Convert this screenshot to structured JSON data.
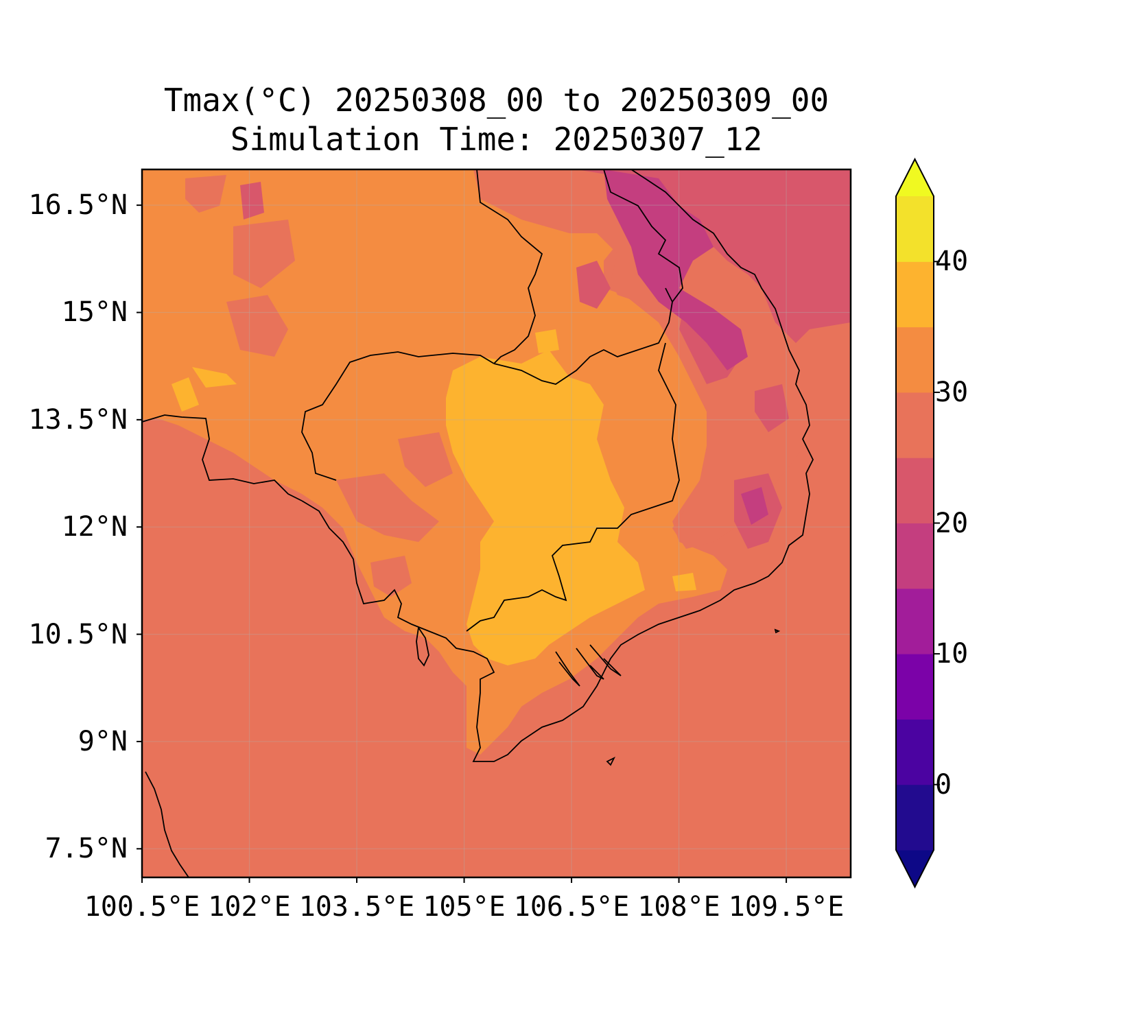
{
  "title": {
    "line1": "Tmax(°C) 20250308_00 to 20250309_00",
    "line2": "Simulation Time: 20250307_12"
  },
  "map": {
    "lon_range": [
      100.5,
      110.4
    ],
    "lat_range": [
      7.1,
      17.0
    ],
    "x_ticks": [
      {
        "value": 100.5,
        "label": "100.5°E"
      },
      {
        "value": 102.0,
        "label": "102°E"
      },
      {
        "value": 103.5,
        "label": "103.5°E"
      },
      {
        "value": 105.0,
        "label": "105°E"
      },
      {
        "value": 106.5,
        "label": "106.5°E"
      },
      {
        "value": 108.0,
        "label": "108°E"
      },
      {
        "value": 109.5,
        "label": "109.5°E"
      }
    ],
    "y_ticks": [
      {
        "value": 16.5,
        "label": "16.5°N"
      },
      {
        "value": 15.0,
        "label": "15°N"
      },
      {
        "value": 13.5,
        "label": "13.5°N"
      },
      {
        "value": 12.0,
        "label": "12°N"
      },
      {
        "value": 10.5,
        "label": "10.5°N"
      },
      {
        "value": 9.0,
        "label": "9°N"
      },
      {
        "value": 7.5,
        "label": "7.5°N"
      }
    ],
    "gridlines": true,
    "background_level_color": "#e8735a"
  },
  "colorbar": {
    "colormap": "plasma",
    "extend": "both",
    "levels": [
      -5,
      0,
      5,
      10,
      15,
      20,
      25,
      30,
      35,
      40,
      45
    ],
    "colors": [
      "#220b8f",
      "#4b03a1",
      "#7b02a8",
      "#a21d9a",
      "#c43e7f",
      "#d8576b",
      "#e8735a",
      "#f48c41",
      "#fdb32f",
      "#f3e12b"
    ],
    "under_color": "#0d0887",
    "over_color": "#f0f921",
    "tick_labels": [
      {
        "value": 0,
        "label": "0"
      },
      {
        "value": 10,
        "label": "10"
      },
      {
        "value": 20,
        "label": "20"
      },
      {
        "value": 30,
        "label": "30"
      },
      {
        "value": 40,
        "label": "40"
      }
    ]
  }
}
